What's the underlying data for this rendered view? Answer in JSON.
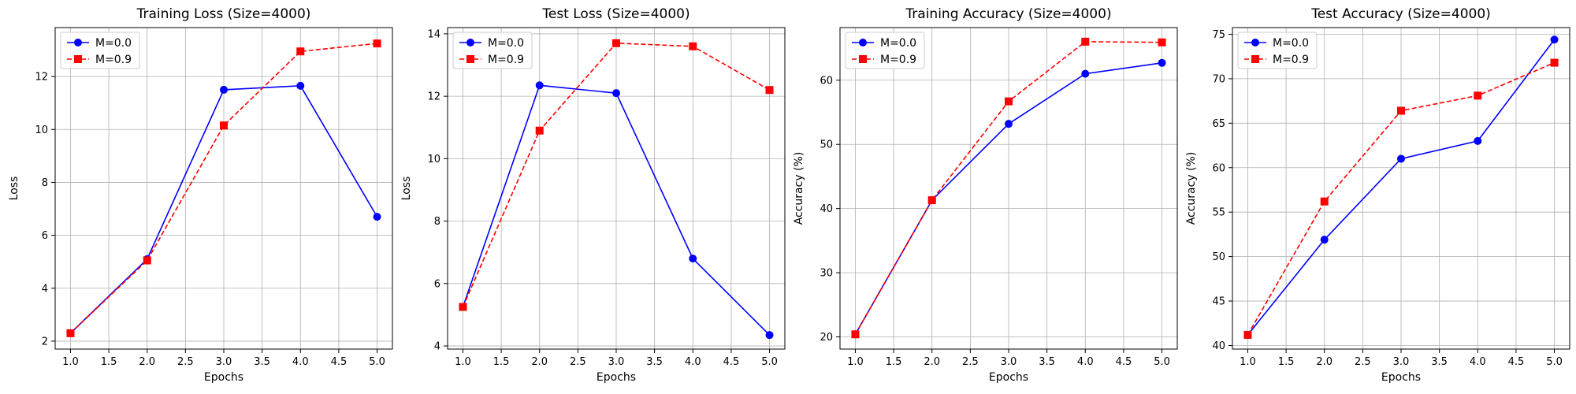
{
  "chart_data": [
    {
      "type": "line",
      "title": "Training Loss (Size=4000)",
      "xlabel": "Epochs",
      "ylabel": "Loss",
      "x": [
        1,
        2,
        3,
        4,
        5
      ],
      "xlim": [
        0.8,
        5.2
      ],
      "ylim": [
        1.7,
        13.85
      ],
      "xticks": [
        1.0,
        1.5,
        2.0,
        2.5,
        3.0,
        3.5,
        4.0,
        4.5,
        5.0
      ],
      "yticks": [
        2,
        4,
        6,
        8,
        10,
        12
      ],
      "x_tick_labels": [
        "1.0",
        "1.5",
        "2.0",
        "2.5",
        "3.0",
        "3.5",
        "4.0",
        "4.5",
        "5.0"
      ],
      "y_tick_labels": [
        "2",
        "4",
        "6",
        "8",
        "10",
        "12"
      ],
      "grid": true,
      "legend_position": "top-left",
      "series": [
        {
          "name": "M=0.0",
          "values": [
            2.3,
            5.1,
            11.5,
            11.65,
            6.7
          ],
          "color": "#0000ff",
          "marker": "circle",
          "dash": "solid"
        },
        {
          "name": "M=0.9",
          "values": [
            2.3,
            5.05,
            10.15,
            12.95,
            13.25
          ],
          "color": "#ff0000",
          "marker": "square",
          "dash": "dashed"
        }
      ]
    },
    {
      "type": "line",
      "title": "Test Loss (Size=4000)",
      "xlabel": "Epochs",
      "ylabel": "Loss",
      "x": [
        1,
        2,
        3,
        4,
        5
      ],
      "xlim": [
        0.8,
        5.2
      ],
      "ylim": [
        3.9,
        14.2
      ],
      "xticks": [
        1.0,
        1.5,
        2.0,
        2.5,
        3.0,
        3.5,
        4.0,
        4.5,
        5.0
      ],
      "yticks": [
        4,
        6,
        8,
        10,
        12,
        14
      ],
      "x_tick_labels": [
        "1.0",
        "1.5",
        "2.0",
        "2.5",
        "3.0",
        "3.5",
        "4.0",
        "4.5",
        "5.0"
      ],
      "y_tick_labels": [
        "4",
        "6",
        "8",
        "10",
        "12",
        "14"
      ],
      "grid": true,
      "legend_position": "top-left",
      "series": [
        {
          "name": "M=0.0",
          "values": [
            5.25,
            12.35,
            12.1,
            6.8,
            4.35
          ],
          "color": "#0000ff",
          "marker": "circle",
          "dash": "solid"
        },
        {
          "name": "M=0.9",
          "values": [
            5.25,
            10.9,
            13.7,
            13.6,
            12.2
          ],
          "color": "#ff0000",
          "marker": "square",
          "dash": "dashed"
        }
      ]
    },
    {
      "type": "line",
      "title": "Training Accuracy (Size=4000)",
      "xlabel": "Epochs",
      "ylabel": "Accuracy (%)",
      "x": [
        1,
        2,
        3,
        4,
        5
      ],
      "xlim": [
        0.8,
        5.2
      ],
      "ylim": [
        18.1,
        68.2
      ],
      "xticks": [
        1.0,
        1.5,
        2.0,
        2.5,
        3.0,
        3.5,
        4.0,
        4.5,
        5.0
      ],
      "yticks": [
        20,
        30,
        40,
        50,
        60
      ],
      "x_tick_labels": [
        "1.0",
        "1.5",
        "2.0",
        "2.5",
        "3.0",
        "3.5",
        "4.0",
        "4.5",
        "5.0"
      ],
      "y_tick_labels": [
        "20",
        "30",
        "40",
        "50",
        "60"
      ],
      "grid": true,
      "legend_position": "top-left",
      "series": [
        {
          "name": "M=0.0",
          "values": [
            20.4,
            41.3,
            53.2,
            61.0,
            62.7
          ],
          "color": "#0000ff",
          "marker": "circle",
          "dash": "solid"
        },
        {
          "name": "M=0.9",
          "values": [
            20.4,
            41.3,
            56.7,
            66.0,
            65.9
          ],
          "color": "#ff0000",
          "marker": "square",
          "dash": "dashed"
        }
      ]
    },
    {
      "type": "line",
      "title": "Test Accuracy (Size=4000)",
      "xlabel": "Epochs",
      "ylabel": "Accuracy (%)",
      "x": [
        1,
        2,
        3,
        4,
        5
      ],
      "xlim": [
        0.8,
        5.2
      ],
      "ylim": [
        39.6,
        75.75
      ],
      "xticks": [
        1.0,
        1.5,
        2.0,
        2.5,
        3.0,
        3.5,
        4.0,
        4.5,
        5.0
      ],
      "yticks": [
        40,
        45,
        50,
        55,
        60,
        65,
        70,
        75
      ],
      "x_tick_labels": [
        "1.0",
        "1.5",
        "2.0",
        "2.5",
        "3.0",
        "3.5",
        "4.0",
        "4.5",
        "5.0"
      ],
      "y_tick_labels": [
        "40",
        "45",
        "50",
        "55",
        "60",
        "65",
        "70",
        "75"
      ],
      "grid": true,
      "legend_position": "top-left",
      "series": [
        {
          "name": "M=0.0",
          "values": [
            41.2,
            51.9,
            61.0,
            63.0,
            74.4
          ],
          "color": "#0000ff",
          "marker": "circle",
          "dash": "solid"
        },
        {
          "name": "M=0.9",
          "values": [
            41.2,
            56.2,
            66.4,
            68.1,
            71.8
          ],
          "color": "#ff0000",
          "marker": "square",
          "dash": "dashed"
        }
      ]
    }
  ]
}
